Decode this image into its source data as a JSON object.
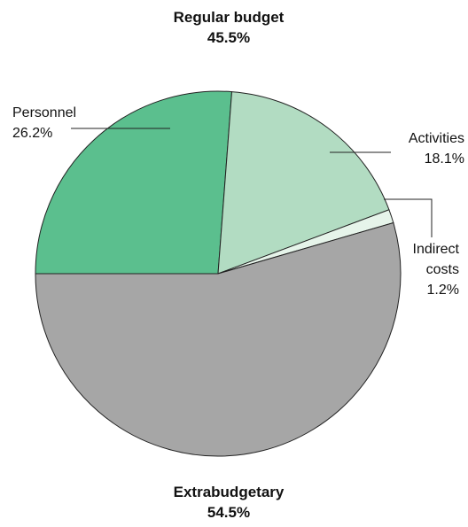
{
  "chart_data": {
    "type": "pie",
    "categories": [
      "Personnel",
      "Activities",
      "Indirect costs",
      "Extrabudgetary"
    ],
    "values": [
      26.2,
      18.1,
      1.2,
      54.5
    ],
    "value_labels": [
      "26.2%",
      "18.1%",
      "1.2%",
      "54.5%"
    ],
    "colors": [
      "#5bbf8e",
      "#b2dcc2",
      "#e6f4ea",
      "#a6a6a6"
    ],
    "annotations": [
      {
        "text": "Regular budget",
        "value_label": "45.5%"
      }
    ]
  }
}
